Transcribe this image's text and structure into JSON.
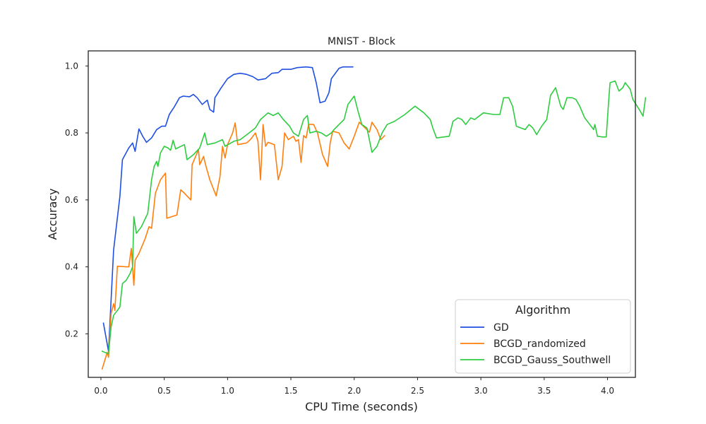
{
  "chart_data": {
    "type": "line",
    "title": "MNIST - Block",
    "xlabel": "CPU Time (seconds)",
    "ylabel": "Accuracy",
    "xlim": [
      -0.1,
      4.22
    ],
    "ylim": [
      0.07,
      1.045
    ],
    "xticks": [
      "0.0",
      "0.5",
      "1.0",
      "1.5",
      "2.0",
      "2.5",
      "3.0",
      "3.5",
      "4.0"
    ],
    "yticks": [
      "0.2",
      "0.4",
      "0.6",
      "0.8",
      "1.0"
    ],
    "grid": false,
    "legend": {
      "title": "Algorithm",
      "placement": "lower-right"
    },
    "series": [
      {
        "name": "GD",
        "color": "#1f4fe0",
        "points": [
          [
            0.02,
            0.232
          ],
          [
            0.06,
            0.148
          ],
          [
            0.1,
            0.45
          ],
          [
            0.15,
            0.61
          ],
          [
            0.17,
            0.72
          ],
          [
            0.22,
            0.755
          ],
          [
            0.25,
            0.77
          ],
          [
            0.27,
            0.745
          ],
          [
            0.3,
            0.812
          ],
          [
            0.33,
            0.79
          ],
          [
            0.36,
            0.772
          ],
          [
            0.4,
            0.785
          ],
          [
            0.44,
            0.81
          ],
          [
            0.48,
            0.82
          ],
          [
            0.51,
            0.82
          ],
          [
            0.54,
            0.855
          ],
          [
            0.58,
            0.878
          ],
          [
            0.62,
            0.905
          ],
          [
            0.65,
            0.91
          ],
          [
            0.7,
            0.908
          ],
          [
            0.73,
            0.915
          ],
          [
            0.76,
            0.905
          ],
          [
            0.8,
            0.885
          ],
          [
            0.84,
            0.898
          ],
          [
            0.86,
            0.87
          ],
          [
            0.89,
            0.862
          ],
          [
            0.9,
            0.905
          ],
          [
            0.95,
            0.935
          ],
          [
            1.0,
            0.962
          ],
          [
            1.05,
            0.975
          ],
          [
            1.1,
            0.978
          ],
          [
            1.15,
            0.975
          ],
          [
            1.2,
            0.968
          ],
          [
            1.24,
            0.958
          ],
          [
            1.3,
            0.962
          ],
          [
            1.35,
            0.978
          ],
          [
            1.4,
            0.98
          ],
          [
            1.43,
            0.99
          ],
          [
            1.5,
            0.99
          ],
          [
            1.55,
            0.995
          ],
          [
            1.62,
            0.997
          ],
          [
            1.67,
            0.995
          ],
          [
            1.7,
            0.95
          ],
          [
            1.73,
            0.89
          ],
          [
            1.77,
            0.895
          ],
          [
            1.8,
            0.92
          ],
          [
            1.82,
            0.962
          ],
          [
            1.88,
            0.993
          ],
          [
            1.91,
            0.997
          ],
          [
            1.99,
            0.997
          ]
        ]
      },
      {
        "name": "BCGD_randomized",
        "color": "#ff7f0e",
        "points": [
          [
            0.01,
            0.095
          ],
          [
            0.05,
            0.145
          ],
          [
            0.06,
            0.13
          ],
          [
            0.08,
            0.26
          ],
          [
            0.1,
            0.29
          ],
          [
            0.11,
            0.27
          ],
          [
            0.13,
            0.402
          ],
          [
            0.2,
            0.4
          ],
          [
            0.22,
            0.4
          ],
          [
            0.24,
            0.455
          ],
          [
            0.26,
            0.345
          ],
          [
            0.27,
            0.42
          ],
          [
            0.3,
            0.44
          ],
          [
            0.35,
            0.485
          ],
          [
            0.38,
            0.52
          ],
          [
            0.4,
            0.515
          ],
          [
            0.43,
            0.62
          ],
          [
            0.47,
            0.66
          ],
          [
            0.51,
            0.68
          ],
          [
            0.52,
            0.545
          ],
          [
            0.6,
            0.555
          ],
          [
            0.63,
            0.63
          ],
          [
            0.66,
            0.62
          ],
          [
            0.71,
            0.6
          ],
          [
            0.72,
            0.705
          ],
          [
            0.77,
            0.75
          ],
          [
            0.78,
            0.705
          ],
          [
            0.81,
            0.73
          ],
          [
            0.83,
            0.7
          ],
          [
            0.86,
            0.66
          ],
          [
            0.91,
            0.612
          ],
          [
            0.94,
            0.67
          ],
          [
            0.96,
            0.76
          ],
          [
            0.98,
            0.725
          ],
          [
            1.0,
            0.765
          ],
          [
            1.04,
            0.8
          ],
          [
            1.06,
            0.83
          ],
          [
            1.08,
            0.765
          ],
          [
            1.15,
            0.77
          ],
          [
            1.18,
            0.78
          ],
          [
            1.22,
            0.8
          ],
          [
            1.24,
            0.775
          ],
          [
            1.26,
            0.66
          ],
          [
            1.28,
            0.825
          ],
          [
            1.3,
            0.76
          ],
          [
            1.32,
            0.772
          ],
          [
            1.37,
            0.765
          ],
          [
            1.4,
            0.66
          ],
          [
            1.43,
            0.7
          ],
          [
            1.45,
            0.8
          ],
          [
            1.48,
            0.78
          ],
          [
            1.5,
            0.785
          ],
          [
            1.52,
            0.79
          ],
          [
            1.54,
            0.775
          ],
          [
            1.56,
            0.78
          ],
          [
            1.58,
            0.712
          ],
          [
            1.6,
            0.792
          ],
          [
            1.62,
            0.785
          ],
          [
            1.64,
            0.826
          ],
          [
            1.68,
            0.825
          ],
          [
            1.71,
            0.8
          ],
          [
            1.75,
            0.735
          ],
          [
            1.79,
            0.7
          ],
          [
            1.81,
            0.77
          ],
          [
            1.83,
            0.805
          ],
          [
            1.88,
            0.8
          ],
          [
            1.92,
            0.77
          ],
          [
            1.96,
            0.752
          ],
          [
            2.0,
            0.79
          ],
          [
            2.04,
            0.832
          ],
          [
            2.12,
            0.802
          ],
          [
            2.14,
            0.832
          ],
          [
            2.18,
            0.81
          ],
          [
            2.21,
            0.78
          ],
          [
            2.24,
            0.792
          ]
        ]
      },
      {
        "name": "BCGD_Gauss_Southwell",
        "color": "#2ecc40",
        "points": [
          [
            0.01,
            0.148
          ],
          [
            0.06,
            0.14
          ],
          [
            0.08,
            0.22
          ],
          [
            0.1,
            0.255
          ],
          [
            0.13,
            0.27
          ],
          [
            0.15,
            0.28
          ],
          [
            0.17,
            0.35
          ],
          [
            0.2,
            0.36
          ],
          [
            0.23,
            0.38
          ],
          [
            0.25,
            0.4
          ],
          [
            0.26,
            0.55
          ],
          [
            0.28,
            0.5
          ],
          [
            0.32,
            0.52
          ],
          [
            0.37,
            0.56
          ],
          [
            0.4,
            0.66
          ],
          [
            0.42,
            0.7
          ],
          [
            0.44,
            0.715
          ],
          [
            0.45,
            0.7
          ],
          [
            0.47,
            0.74
          ],
          [
            0.5,
            0.76
          ],
          [
            0.53,
            0.755
          ],
          [
            0.55,
            0.748
          ],
          [
            0.57,
            0.778
          ],
          [
            0.59,
            0.752
          ],
          [
            0.62,
            0.758
          ],
          [
            0.66,
            0.765
          ],
          [
            0.68,
            0.72
          ],
          [
            0.73,
            0.735
          ],
          [
            0.78,
            0.755
          ],
          [
            0.82,
            0.8
          ],
          [
            0.84,
            0.765
          ],
          [
            0.9,
            0.77
          ],
          [
            0.96,
            0.78
          ],
          [
            0.98,
            0.76
          ],
          [
            1.05,
            0.775
          ],
          [
            1.1,
            0.78
          ],
          [
            1.17,
            0.8
          ],
          [
            1.22,
            0.815
          ],
          [
            1.26,
            0.84
          ],
          [
            1.32,
            0.86
          ],
          [
            1.36,
            0.852
          ],
          [
            1.4,
            0.86
          ],
          [
            1.44,
            0.84
          ],
          [
            1.49,
            0.82
          ],
          [
            1.52,
            0.8
          ],
          [
            1.56,
            0.79
          ],
          [
            1.6,
            0.84
          ],
          [
            1.63,
            0.852
          ],
          [
            1.65,
            0.8
          ],
          [
            1.7,
            0.805
          ],
          [
            1.74,
            0.8
          ],
          [
            1.78,
            0.79
          ],
          [
            1.82,
            0.8
          ],
          [
            1.84,
            0.81
          ],
          [
            1.88,
            0.825
          ],
          [
            1.92,
            0.84
          ],
          [
            1.95,
            0.885
          ],
          [
            2.0,
            0.91
          ],
          [
            2.03,
            0.865
          ],
          [
            2.06,
            0.825
          ],
          [
            2.1,
            0.815
          ],
          [
            2.14,
            0.742
          ],
          [
            2.18,
            0.76
          ],
          [
            2.22,
            0.8
          ],
          [
            2.26,
            0.825
          ],
          [
            2.32,
            0.835
          ],
          [
            2.4,
            0.855
          ],
          [
            2.48,
            0.88
          ],
          [
            2.55,
            0.86
          ],
          [
            2.6,
            0.84
          ],
          [
            2.62,
            0.815
          ],
          [
            2.65,
            0.785
          ],
          [
            2.75,
            0.79
          ],
          [
            2.78,
            0.835
          ],
          [
            2.82,
            0.845
          ],
          [
            2.85,
            0.84
          ],
          [
            2.88,
            0.825
          ],
          [
            2.92,
            0.845
          ],
          [
            2.95,
            0.84
          ],
          [
            3.02,
            0.86
          ],
          [
            3.05,
            0.858
          ],
          [
            3.1,
            0.855
          ],
          [
            3.15,
            0.855
          ],
          [
            3.18,
            0.905
          ],
          [
            3.22,
            0.905
          ],
          [
            3.25,
            0.88
          ],
          [
            3.28,
            0.82
          ],
          [
            3.35,
            0.81
          ],
          [
            3.38,
            0.825
          ],
          [
            3.41,
            0.815
          ],
          [
            3.44,
            0.795
          ],
          [
            3.48,
            0.82
          ],
          [
            3.52,
            0.84
          ],
          [
            3.55,
            0.912
          ],
          [
            3.59,
            0.935
          ],
          [
            3.63,
            0.88
          ],
          [
            3.65,
            0.87
          ],
          [
            3.68,
            0.905
          ],
          [
            3.72,
            0.905
          ],
          [
            3.75,
            0.9
          ],
          [
            3.78,
            0.88
          ],
          [
            3.82,
            0.845
          ],
          [
            3.86,
            0.825
          ],
          [
            3.89,
            0.81
          ],
          [
            3.9,
            0.825
          ],
          [
            3.92,
            0.79
          ],
          [
            3.96,
            0.788
          ],
          [
            3.99,
            0.788
          ],
          [
            4.01,
            0.9
          ],
          [
            4.02,
            0.95
          ],
          [
            4.06,
            0.955
          ],
          [
            4.09,
            0.925
          ],
          [
            4.12,
            0.935
          ],
          [
            4.14,
            0.95
          ],
          [
            4.18,
            0.93
          ],
          [
            4.2,
            0.9
          ],
          [
            4.25,
            0.87
          ],
          [
            4.28,
            0.85
          ],
          [
            4.3,
            0.905
          ]
        ]
      }
    ]
  }
}
